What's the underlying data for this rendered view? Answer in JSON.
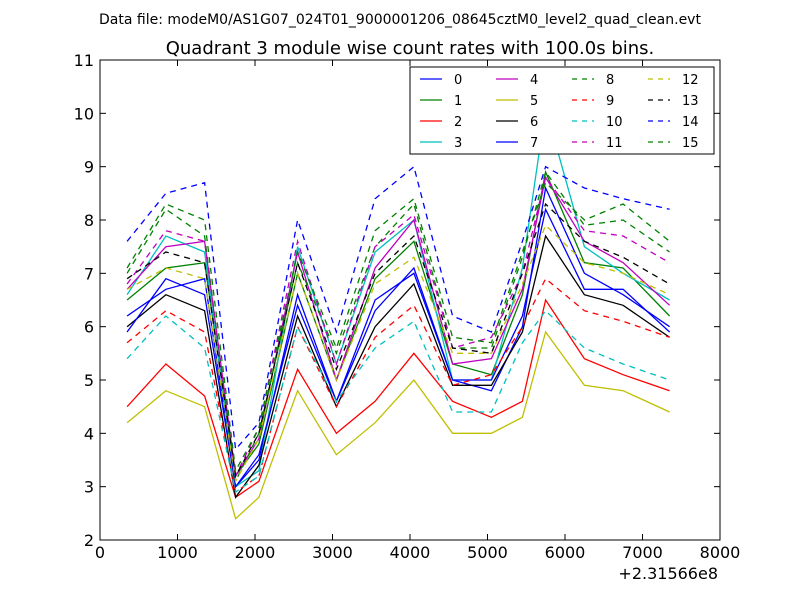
{
  "figure": {
    "suptitle": "Data file: modeM0/AS1G07_024T01_9000001206_08645cztM0_level2_quad_clean.evt"
  },
  "chart_data": {
    "type": "line",
    "title": "Quadrant 3 module wise count rates with 100.0s bins.",
    "xlabel": "",
    "ylabel": "",
    "x_offset_label": "+2.31566e8",
    "xlim": [
      0,
      8000
    ],
    "ylim": [
      2,
      11
    ],
    "xticks": [
      0,
      1000,
      2000,
      3000,
      4000,
      5000,
      6000,
      7000,
      8000
    ],
    "yticks": [
      2,
      3,
      4,
      5,
      6,
      7,
      8,
      9,
      10,
      11
    ],
    "grid": false,
    "legend_position": "top-right",
    "legend_columns": 4,
    "x": [
      350,
      850,
      1350,
      1750,
      2050,
      2550,
      3050,
      3550,
      4050,
      4550,
      5050,
      5450,
      5750,
      6250,
      6750,
      7350
    ],
    "series": [
      {
        "name": "0",
        "color": "#0000ff",
        "dash": "solid",
        "values": [
          6.2,
          6.7,
          6.9,
          3.0,
          3.5,
          6.6,
          4.6,
          6.3,
          7.1,
          5.0,
          4.8,
          6.0,
          8.6,
          7.0,
          6.6,
          6.0
        ]
      },
      {
        "name": "1",
        "color": "#008000",
        "dash": "solid",
        "values": [
          6.5,
          7.1,
          7.2,
          3.2,
          3.8,
          7.0,
          5.0,
          6.9,
          7.6,
          5.3,
          5.1,
          6.6,
          8.9,
          7.2,
          7.1,
          6.2
        ]
      },
      {
        "name": "2",
        "color": "#ff0000",
        "dash": "solid",
        "values": [
          4.5,
          5.3,
          4.7,
          2.8,
          3.1,
          5.2,
          4.0,
          4.6,
          5.5,
          4.6,
          4.3,
          4.6,
          6.5,
          5.4,
          5.1,
          4.8
        ]
      },
      {
        "name": "3",
        "color": "#00bfbf",
        "dash": "solid",
        "values": [
          6.6,
          7.7,
          7.4,
          3.0,
          3.3,
          7.5,
          5.3,
          7.4,
          8.0,
          5.0,
          5.0,
          7.1,
          10.1,
          7.5,
          7.0,
          6.5
        ]
      },
      {
        "name": "4",
        "color": "#bf00bf",
        "dash": "solid",
        "values": [
          6.7,
          7.5,
          7.6,
          3.2,
          3.9,
          7.4,
          5.0,
          7.1,
          8.0,
          5.3,
          5.4,
          6.7,
          8.8,
          7.6,
          7.2,
          6.4
        ]
      },
      {
        "name": "5",
        "color": "#bfbf00",
        "dash": "solid",
        "values": [
          4.2,
          4.8,
          4.5,
          2.4,
          2.8,
          4.8,
          3.6,
          4.2,
          5.0,
          4.0,
          4.0,
          4.3,
          5.9,
          4.9,
          4.8,
          4.4
        ]
      },
      {
        "name": "6",
        "color": "#000000",
        "dash": "solid",
        "values": [
          6.0,
          6.6,
          6.3,
          2.8,
          3.4,
          6.2,
          4.5,
          6.0,
          6.8,
          4.9,
          4.9,
          5.9,
          7.7,
          6.6,
          6.4,
          5.8
        ]
      },
      {
        "name": "7",
        "color": "#0000ff",
        "dash": "solid",
        "values": [
          5.9,
          6.9,
          6.6,
          3.0,
          3.6,
          6.4,
          4.6,
          6.5,
          7.0,
          5.0,
          5.0,
          6.2,
          8.2,
          6.7,
          6.7,
          5.9
        ]
      },
      {
        "name": "8",
        "color": "#008000",
        "dash": "dashed",
        "values": [
          7.0,
          8.2,
          7.7,
          3.1,
          4.0,
          7.2,
          5.5,
          7.5,
          8.3,
          5.6,
          5.6,
          7.3,
          8.9,
          7.9,
          8.0,
          7.4
        ]
      },
      {
        "name": "9",
        "color": "#ff0000",
        "dash": "dashed",
        "values": [
          5.7,
          6.3,
          5.9,
          2.9,
          3.2,
          6.0,
          4.5,
          5.8,
          6.4,
          4.9,
          5.1,
          6.0,
          6.9,
          6.3,
          6.1,
          5.8
        ]
      },
      {
        "name": "10",
        "color": "#00bfbf",
        "dash": "dashed",
        "values": [
          5.4,
          6.2,
          5.6,
          2.9,
          3.2,
          6.0,
          4.6,
          5.6,
          6.1,
          4.4,
          4.4,
          5.7,
          6.3,
          5.6,
          5.3,
          5.0
        ]
      },
      {
        "name": "11",
        "color": "#bf00bf",
        "dash": "dashed",
        "values": [
          6.8,
          7.8,
          7.6,
          3.2,
          4.1,
          7.6,
          5.3,
          7.5,
          8.1,
          5.6,
          5.8,
          7.0,
          8.8,
          7.8,
          7.7,
          7.2
        ]
      },
      {
        "name": "12",
        "color": "#bfbf00",
        "dash": "dashed",
        "values": [
          6.7,
          7.1,
          6.9,
          3.1,
          3.9,
          7.0,
          5.0,
          6.8,
          7.3,
          5.5,
          5.5,
          6.8,
          7.9,
          7.2,
          7.0,
          6.6
        ]
      },
      {
        "name": "13",
        "color": "#000000",
        "dash": "dashed",
        "values": [
          6.9,
          7.4,
          7.2,
          3.2,
          4.0,
          7.2,
          5.2,
          7.0,
          7.7,
          5.6,
          5.5,
          7.0,
          8.3,
          7.6,
          7.3,
          6.8
        ]
      },
      {
        "name": "14",
        "color": "#0000ff",
        "dash": "dashed",
        "values": [
          7.6,
          8.5,
          8.7,
          3.7,
          4.2,
          8.0,
          5.9,
          8.4,
          9.0,
          6.2,
          5.9,
          7.6,
          9.0,
          8.6,
          8.4,
          8.2
        ]
      },
      {
        "name": "15",
        "color": "#008000",
        "dash": "dashed",
        "values": [
          7.1,
          8.3,
          8.0,
          3.3,
          4.1,
          7.4,
          5.6,
          7.8,
          8.4,
          5.8,
          5.7,
          7.4,
          8.7,
          8.0,
          8.3,
          7.6
        ]
      }
    ]
  }
}
